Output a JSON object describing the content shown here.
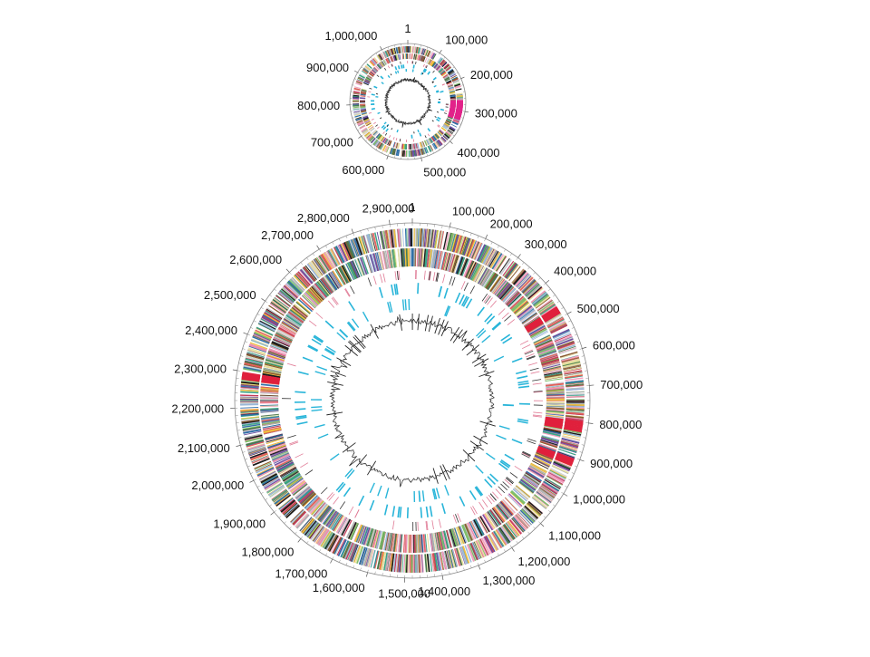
{
  "palette": [
    "#1a1a1a",
    "#2f6fa8",
    "#e8e0a0",
    "#c23b5a",
    "#3aa58a",
    "#d6d6d6",
    "#e98fb0",
    "#7fbf6a",
    "#f0c040",
    "#6a4fa0",
    "#9ab8d8",
    "#8a5a30",
    "#f2a0c0",
    "#4a7a4a",
    "#b0b0b0",
    "#e0605a"
  ],
  "colors": {
    "rrna": "#29b5d9",
    "trna": "#e07a95",
    "highlight_small": "#e2238a",
    "highlight_large": "#e0203c",
    "gc_skew": "#1a1a1a",
    "ring_outline": "#8a8a8a"
  },
  "small_map": {
    "genome_length": 1080000,
    "highlight_regions": [
      [
        268000,
        330000
      ]
    ],
    "labels": [
      "1",
      "100,000",
      "200,000",
      "300,000",
      "400,000",
      "500,000",
      "600,000",
      "700,000",
      "800,000",
      "900,000",
      "1,000,000"
    ],
    "label_positions": [
      1,
      100000,
      200000,
      300000,
      400000,
      500000,
      600000,
      700000,
      800000,
      900000,
      1000000
    ]
  },
  "large_map": {
    "genome_length": 2960000,
    "highlight_regions": [
      [
        470000,
        490000
      ],
      [
        800000,
        830000
      ],
      [
        905000,
        925000
      ],
      [
        2280000,
        2300000
      ]
    ],
    "labels": [
      "1",
      "100,000",
      "200,000",
      "300,000",
      "400,000",
      "500,000",
      "600,000",
      "700,000",
      "800,000",
      "900,000",
      "1,000,000",
      "1,100,000",
      "1,200,000",
      "1,300,000",
      "1,400,000",
      "1,500,000",
      "1,600,000",
      "1,700,000",
      "1,800,000",
      "1,900,000",
      "2,000,000",
      "2,100,000",
      "2,200,000",
      "2,300,000",
      "2,400,000",
      "2,500,000",
      "2,600,000",
      "2,700,000",
      "2,800,000",
      "2,900,000"
    ],
    "label_positions": [
      1,
      100000,
      200000,
      300000,
      400000,
      500000,
      600000,
      700000,
      800000,
      900000,
      1000000,
      1100000,
      1200000,
      1300000,
      1400000,
      1500000,
      1600000,
      1700000,
      1800000,
      1900000,
      2000000,
      2100000,
      2200000,
      2300000,
      2400000,
      2500000,
      2600000,
      2700000,
      2800000,
      2900000
    ]
  }
}
